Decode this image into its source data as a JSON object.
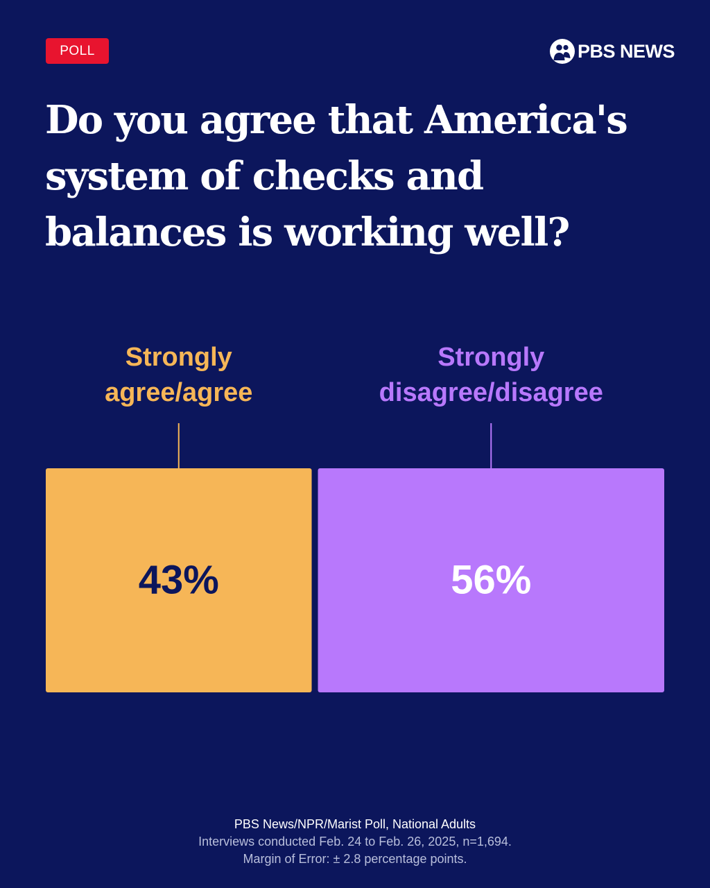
{
  "badge": {
    "label": "POLL"
  },
  "brand": {
    "name": "PBS NEWS",
    "icon": "pbs-heads-logo-icon"
  },
  "chart_data": {
    "type": "bar",
    "orientation": "horizontal-stacked",
    "title": "Do you agree that America's system of checks and balances is working well?",
    "categories": [
      "Strongly agree/agree",
      "Strongly disagree/disagree"
    ],
    "label_lines": [
      [
        "Strongly",
        "agree/agree"
      ],
      [
        "Strongly",
        "disagree/disagree"
      ]
    ],
    "values": [
      43,
      56
    ],
    "value_labels": [
      "43%",
      "56%"
    ],
    "unit": "%",
    "colors": [
      "#f6b657",
      "#b878fc"
    ],
    "value_label_colors": [
      "#0c165c",
      "#ffffff"
    ],
    "legend": "none",
    "grid": false
  },
  "footer": {
    "source": "PBS News/NPR/Marist Poll, National Adults",
    "dates": "Interviews conducted Feb. 24 to Feb. 26, 2025, n=1,694.",
    "margin": "Margin of Error: ± 2.8 percentage points."
  },
  "colors": {
    "background": "#0c165c",
    "badge": "#e8142f",
    "text": "#ffffff",
    "muted_text": "#b9bfdc"
  }
}
